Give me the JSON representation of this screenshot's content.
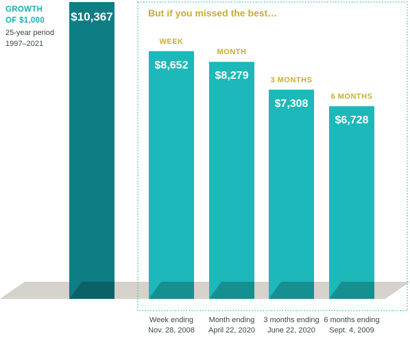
{
  "chart_data": {
    "type": "bar",
    "title": "",
    "side_label": {
      "line1": "GROWTH",
      "line2": "OF $1,000",
      "sub1": "25-year period",
      "sub2": "1997–2021"
    },
    "missed_heading": "But if you missed the best…",
    "categories": [
      "",
      "WEEK",
      "MONTH",
      "3 MONTHS",
      "6 MONTHS"
    ],
    "values": [
      10367,
      8652,
      8279,
      7308,
      6728
    ],
    "value_labels": [
      "$10,367",
      "$8,652",
      "$8,279",
      "$7,308",
      "$6,728"
    ],
    "period_labels": [
      [
        "",
        ""
      ],
      [
        "Week ending",
        "Nov. 28, 2008"
      ],
      [
        "Month ending",
        "April 22, 2020"
      ],
      [
        "3 months ending",
        "June 22, 2020"
      ],
      [
        "6 months ending",
        "Sept. 4, 2009"
      ]
    ],
    "colors": {
      "full_period_bar": "#0d7e84",
      "missed_bar": "#1db8b9",
      "floor": "#d4d2ca",
      "heading": "#c7ad2e",
      "side_title": "#1aaeb0",
      "dotted_box": "#1db8b9"
    },
    "ylim": [
      0,
      10367
    ],
    "grid": false,
    "legend": "none"
  }
}
